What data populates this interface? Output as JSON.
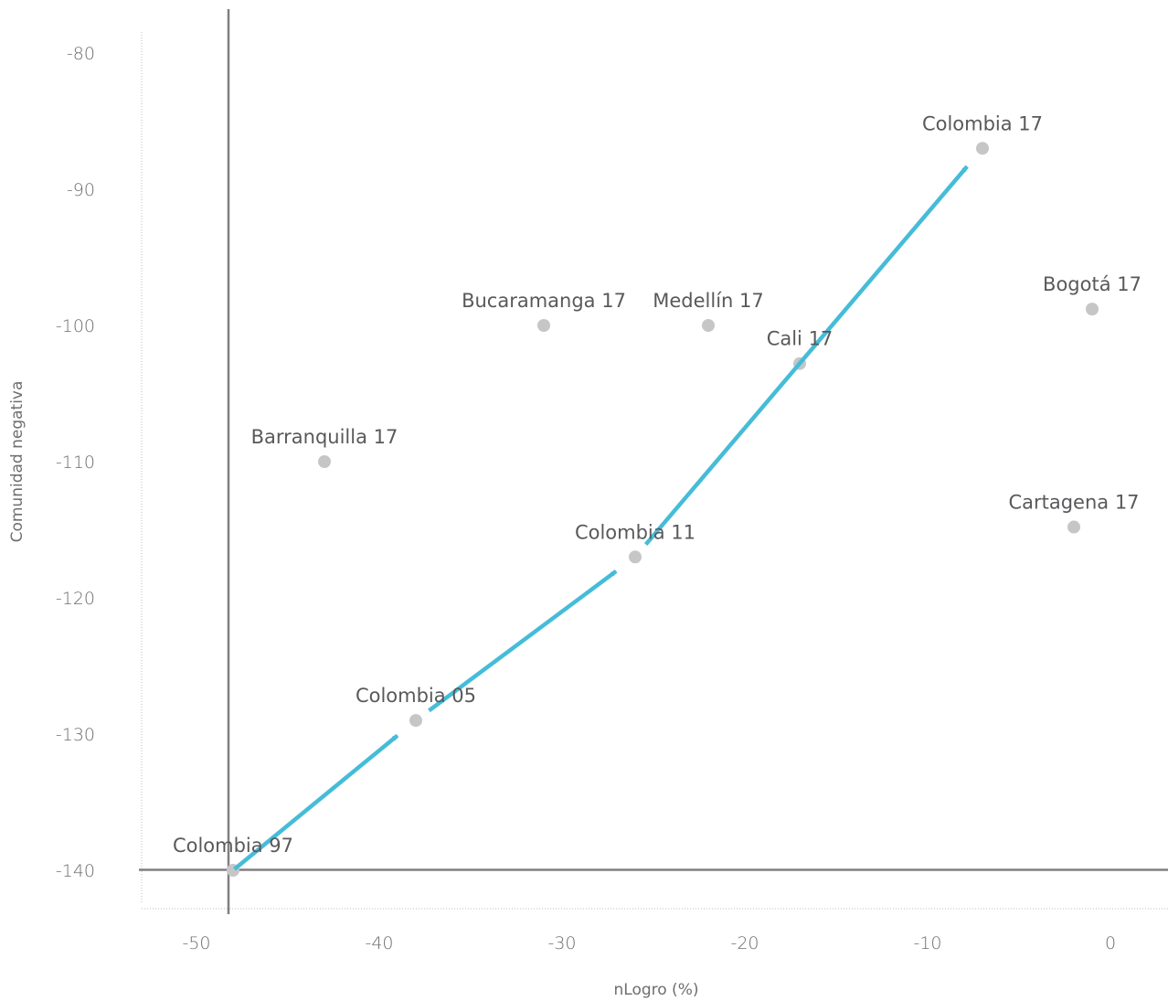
{
  "chart_data": {
    "type": "scatter",
    "title": "",
    "xlabel": "nLogro (%)",
    "ylabel": "Comunidad negativa",
    "xlim": [
      -53,
      2
    ],
    "ylim": [
      -143,
      -77
    ],
    "x_ticks": [
      -50,
      -40,
      -30,
      -20,
      -10,
      0
    ],
    "x_tick_labels": [
      "-50",
      "-40",
      "-30",
      "-20",
      "-10",
      "0"
    ],
    "y_ticks": [
      -80,
      -90,
      -100,
      -110,
      -120,
      -130,
      -140
    ],
    "y_tick_labels": [
      "-80",
      "-90",
      "-100",
      "-110",
      "-120",
      "-130",
      "-140"
    ],
    "grid": false,
    "reference_lines": {
      "x": -49,
      "y": -139.5
    },
    "points": [
      {
        "label": "Colombia 97",
        "x": -49.0,
        "y": -140.0
      },
      {
        "label": "Colombia 05",
        "x": -39.0,
        "y": -129.0
      },
      {
        "label": "Colombia 11",
        "x": -27.0,
        "y": -117.0
      },
      {
        "label": "Colombia 17",
        "x": -8.0,
        "y": -87.0
      },
      {
        "label": "Barranquilla 17",
        "x": -44.0,
        "y": -110.0
      },
      {
        "label": "Bucaramanga 17",
        "x": -32.0,
        "y": -100.0
      },
      {
        "label": "Medellín 17",
        "x": -23.0,
        "y": -100.0
      },
      {
        "label": "Cali 17",
        "x": -18.0,
        "y": -102.8
      },
      {
        "label": "Bogotá 17",
        "x": -2.0,
        "y": -98.8
      },
      {
        "label": "Cartagena 17",
        "x": -3.0,
        "y": -114.8
      }
    ],
    "trajectory": [
      {
        "from": "Colombia 97",
        "to": "Colombia 05"
      },
      {
        "from": "Colombia 05",
        "to": "Colombia 11"
      },
      {
        "from": "Colombia 11",
        "to": "Colombia 17"
      }
    ],
    "colors": {
      "point": "#c6c6c6",
      "arrow": "#45bcd8",
      "reference_line": "#808080",
      "axis": "#bdbdbd",
      "text": "#58595b"
    }
  }
}
